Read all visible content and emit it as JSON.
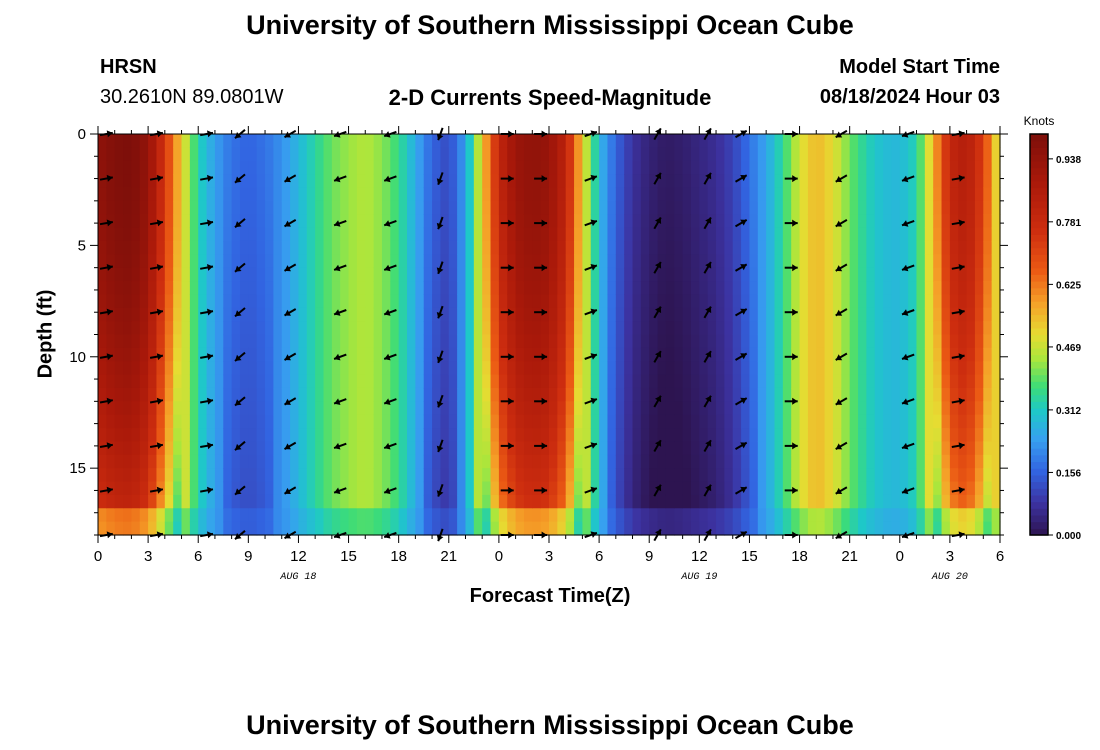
{
  "header": {
    "title": "University of Southern Mississippi Ocean Cube",
    "station": "HRSN",
    "coordinates": "30.2610N  89.0801W",
    "chart_title": "2-D Currents Speed-Magnitude",
    "model_label": "Model Start Time",
    "model_time": "08/18/2024 Hour 03"
  },
  "footer": {
    "title": "University of Southern Mississippi Ocean Cube"
  },
  "chart_data": {
    "type": "heatmap",
    "title": "2-D Currents Speed-Magnitude",
    "xlabel": "Forecast Time(Z)",
    "ylabel": "Depth (ft)",
    "x_range_hours": [
      0,
      54
    ],
    "ylim": [
      0,
      18
    ],
    "y_ticks": [
      0,
      5,
      10,
      15
    ],
    "y_tick_labels": [
      "0",
      "5",
      "10",
      "15"
    ],
    "x_tick_hours": [
      0,
      3,
      6,
      9,
      12,
      15,
      18,
      21,
      24,
      27,
      30,
      33,
      36,
      39,
      42,
      45,
      48,
      51,
      54
    ],
    "x_tick_labels": [
      "0",
      "3",
      "6",
      "9",
      "12",
      "15",
      "18",
      "21",
      "0",
      "3",
      "6",
      "9",
      "12",
      "15",
      "18",
      "21",
      "0",
      "3",
      "6"
    ],
    "date_labels": [
      {
        "hour": 12,
        "label": "AUG 18"
      },
      {
        "hour": 36,
        "label": "AUG 19"
      },
      {
        "hour": 51,
        "label": "AUG 20"
      }
    ],
    "colorbar": {
      "label": "Knots",
      "min": 0.0,
      "max": 1.0,
      "ticks": [
        0.0,
        0.156,
        0.312,
        0.469,
        0.625,
        0.781,
        0.938
      ],
      "tick_labels": [
        "0.000",
        "0.156",
        "0.312",
        "0.469",
        "0.625",
        "0.781",
        "0.938"
      ]
    },
    "speed_profile": {
      "hours": [
        0,
        1,
        2,
        3,
        4,
        5,
        6,
        7,
        8,
        9,
        10,
        11,
        12,
        13,
        14,
        15,
        16,
        17,
        18,
        19,
        20,
        21,
        22,
        23,
        24,
        25,
        26,
        27,
        28,
        29,
        30,
        31,
        32,
        33,
        34,
        35,
        36,
        37,
        38,
        39,
        40,
        41,
        42,
        43,
        44,
        45,
        46,
        47,
        48,
        49,
        50,
        51,
        52,
        53,
        54
      ],
      "values": [
        0.95,
        0.99,
        1.0,
        0.94,
        0.74,
        0.52,
        0.33,
        0.24,
        0.18,
        0.16,
        0.18,
        0.22,
        0.28,
        0.34,
        0.4,
        0.43,
        0.45,
        0.42,
        0.36,
        0.26,
        0.16,
        0.12,
        0.24,
        0.52,
        0.8,
        0.92,
        0.95,
        0.93,
        0.82,
        0.52,
        0.28,
        0.16,
        0.08,
        0.04,
        0.02,
        0.03,
        0.05,
        0.07,
        0.11,
        0.18,
        0.25,
        0.35,
        0.48,
        0.55,
        0.5,
        0.4,
        0.33,
        0.29,
        0.28,
        0.33,
        0.55,
        0.8,
        0.85,
        0.72,
        0.45
      ]
    },
    "current_vectors": {
      "hours": [
        0.5,
        3.5,
        6.5,
        8.5,
        11.5,
        14.5,
        17.5,
        20.5,
        24.5,
        26.5,
        29.5,
        33.5,
        36.5,
        38.5,
        41.5,
        44.5,
        48.5,
        51.5
      ],
      "directions_deg": [
        80,
        80,
        80,
        230,
        240,
        250,
        250,
        200,
        90,
        90,
        70,
        30,
        30,
        60,
        90,
        240,
        250,
        80
      ],
      "depths_ft": [
        0,
        2,
        4,
        6,
        8,
        10,
        12,
        14,
        16,
        18
      ]
    }
  }
}
